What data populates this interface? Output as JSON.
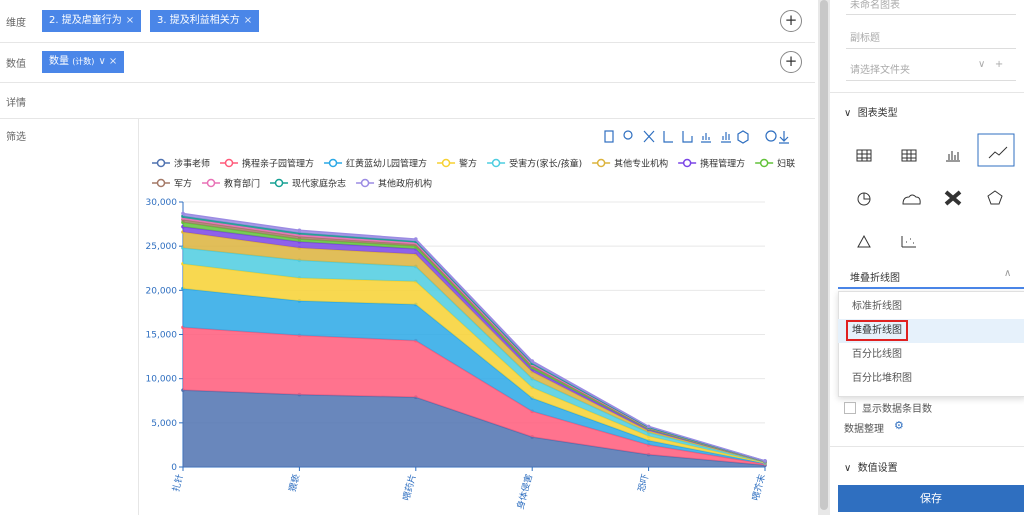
{
  "dimension": {
    "label": "维度",
    "chips": [
      "2. 提及虐童行为",
      "3. 提及利益相关方"
    ]
  },
  "measure": {
    "label": "数值",
    "chip": "数量",
    "chip_note": "(计数)"
  },
  "details_label": "详情",
  "filter_label": "筛选",
  "chart_data": {
    "type": "area",
    "stacked": true,
    "categories": [
      "扎针",
      "猥亵",
      "喂药片",
      "身体侵害",
      "恐吓",
      "喂芥末"
    ],
    "ylim": [
      0,
      30000
    ],
    "yticks": [
      0,
      {
        "value": 5000,
        "label": "5,000"
      },
      {
        "value": 10000,
        "label": "10,000"
      },
      {
        "value": 15000,
        "label": "15,000"
      },
      {
        "value": 20000,
        "label": "20,000"
      },
      {
        "value": 25000,
        "label": "25,000"
      },
      {
        "value": 30000,
        "label": "30,000"
      }
    ],
    "grid": true,
    "series": [
      {
        "name": "涉事老师",
        "color": "#4f72b0",
        "values": [
          8700,
          8200,
          7900,
          3400,
          1400,
          200
        ]
      },
      {
        "name": "携程亲子园管理方",
        "color": "#ff5a7a",
        "values": [
          7100,
          6700,
          6400,
          2900,
          1100,
          150
        ]
      },
      {
        "name": "红黄蓝幼儿园管理方",
        "color": "#2aa8e6",
        "values": [
          4400,
          3900,
          4100,
          1500,
          500,
          70
        ]
      },
      {
        "name": "警方",
        "color": "#f7d131",
        "values": [
          2800,
          2600,
          2600,
          1200,
          500,
          60
        ]
      },
      {
        "name": "受害方(家长/孩童)",
        "color": "#4dcde0",
        "values": [
          1800,
          2000,
          1700,
          1000,
          400,
          60
        ]
      },
      {
        "name": "其他专业机构",
        "color": "#dcb33c",
        "values": [
          1800,
          1400,
          1400,
          800,
          200,
          40
        ]
      },
      {
        "name": "携程管理方",
        "color": "#7a45e6",
        "values": [
          600,
          700,
          600,
          300,
          150,
          20
        ]
      },
      {
        "name": "妇联",
        "color": "#62c23a",
        "values": [
          500,
          300,
          300,
          200,
          80,
          20
        ]
      },
      {
        "name": "军方",
        "color": "#a47866",
        "values": [
          300,
          300,
          200,
          150,
          70,
          20
        ]
      },
      {
        "name": "教育部门",
        "color": "#e871b6",
        "values": [
          200,
          200,
          200,
          150,
          50,
          20
        ]
      },
      {
        "name": "现代家庭杂志",
        "color": "#16a093",
        "values": [
          200,
          200,
          150,
          150,
          50,
          20
        ]
      },
      {
        "name": "其他政府机构",
        "color": "#9b8be3",
        "values": [
          300,
          300,
          250,
          250,
          100,
          20
        ]
      }
    ]
  },
  "settings": {
    "title_placeholder": "未命名图表",
    "subtitle_placeholder": "副标题",
    "folder_placeholder": "请选择文件夹",
    "chart_type_section": "图表类型",
    "selected_type": "堆叠折线图",
    "type_options": [
      "标准折线图",
      "堆叠折线图",
      "百分比线图",
      "百分比堆积图"
    ],
    "show_count": "显示数据条目数",
    "data_tidy": "数据整理",
    "value_section": "数值设置",
    "save": "保存"
  }
}
